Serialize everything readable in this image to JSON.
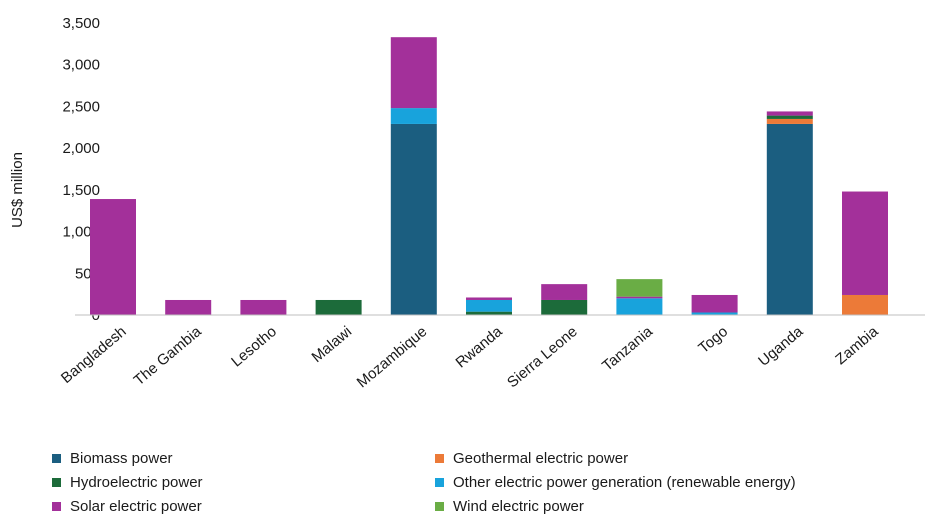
{
  "chart_data": {
    "type": "bar",
    "stacked": true,
    "title": "",
    "xlabel": "",
    "ylabel": "US$ million",
    "ylim": [
      0,
      3500
    ],
    "yticks": [
      0,
      500,
      1000,
      1500,
      2000,
      2500,
      3000,
      3500
    ],
    "ytick_labels": [
      "0",
      "500",
      "1,000",
      "1,500",
      "2,000",
      "2,500",
      "3,000",
      "3,500"
    ],
    "grid": false,
    "legend_position": "bottom",
    "categories": [
      "Bangladesh",
      "The Gambia",
      "Lesotho",
      "Malawi",
      "Mozambique",
      "Rwanda",
      "Sierra Leone",
      "Tanzania",
      "Togo",
      "Uganda",
      "Zambia"
    ],
    "series": [
      {
        "name": "Biomass power",
        "color": "#1b5e80",
        "values": [
          0,
          0,
          0,
          0,
          2290,
          0,
          0,
          0,
          0,
          2290,
          0
        ]
      },
      {
        "name": "Geothermal electric power",
        "color": "#ec7a38",
        "values": [
          0,
          0,
          0,
          0,
          0,
          0,
          0,
          0,
          0,
          60,
          240
        ]
      },
      {
        "name": "Hydroelectric power",
        "color": "#1c6b3a",
        "values": [
          0,
          0,
          0,
          180,
          0,
          40,
          180,
          0,
          0,
          40,
          0
        ]
      },
      {
        "name": "Other electric power generation (renewable energy)",
        "color": "#18a3dc",
        "values": [
          0,
          0,
          0,
          0,
          190,
          140,
          0,
          200,
          30,
          0,
          0
        ]
      },
      {
        "name": "Solar electric power",
        "color": "#a3309a",
        "values": [
          1390,
          180,
          180,
          0,
          850,
          30,
          190,
          20,
          210,
          50,
          1240
        ]
      },
      {
        "name": "Wind electric power",
        "color": "#6aad45",
        "values": [
          0,
          0,
          0,
          0,
          0,
          0,
          0,
          210,
          0,
          0,
          0
        ]
      }
    ]
  }
}
